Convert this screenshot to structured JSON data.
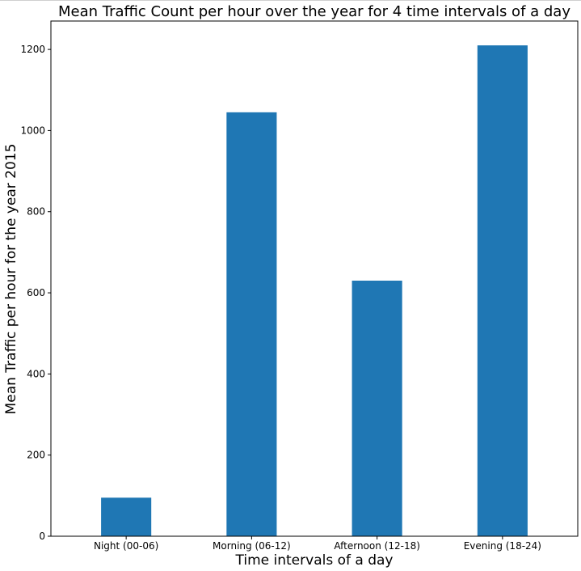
{
  "chart_data": {
    "type": "bar",
    "title": "Mean Traffic Count per hour over the year for 4 time intervals of a day",
    "xlabel": "Time intervals of a day",
    "ylabel": "Mean Traffic per hour for the year 2015",
    "categories": [
      "Night (00-06)",
      "Morning (06-12)",
      "Afternoon (12-18)",
      "Evening (18-24)"
    ],
    "values": [
      95,
      1045,
      630,
      1210
    ],
    "ylim": [
      0,
      1270
    ],
    "yticks": [
      0,
      200,
      400,
      600,
      800,
      1000,
      1200
    ],
    "grid": false,
    "bar_color": "#1f77b4"
  }
}
